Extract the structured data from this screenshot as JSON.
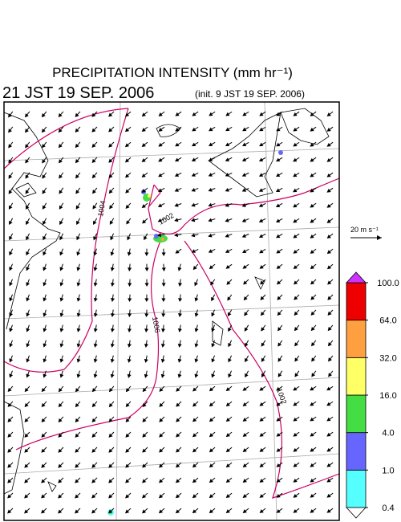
{
  "header": {
    "title": "PRECIPITATION INTENSITY (mm hr⁻¹)",
    "valid_time": "21 JST 19 SEP. 2006",
    "init_time": "(init. 9 JST 19 SEP. 2006)"
  },
  "wind_scale": {
    "label": "20 m s⁻¹"
  },
  "isobars": {
    "labels": [
      "1004",
      "1002",
      "1006",
      "1002"
    ]
  },
  "colorbar": {
    "colors": [
      "#55ffff",
      "#6666ff",
      "#44dd44",
      "#ffff66",
      "#ffa040",
      "#ee0000"
    ],
    "over_color": "#cc33ff",
    "under_color": "#ffffff",
    "ticks": [
      {
        "value": 0.4,
        "label": "0.4"
      },
      {
        "value": 1,
        "label": "1.0"
      },
      {
        "value": 4,
        "label": "4.0"
      },
      {
        "value": 16,
        "label": "16.0"
      },
      {
        "value": 32,
        "label": "32.0"
      },
      {
        "value": 64,
        "label": "64.0"
      },
      {
        "value": 100,
        "label": "100.0"
      }
    ]
  }
}
